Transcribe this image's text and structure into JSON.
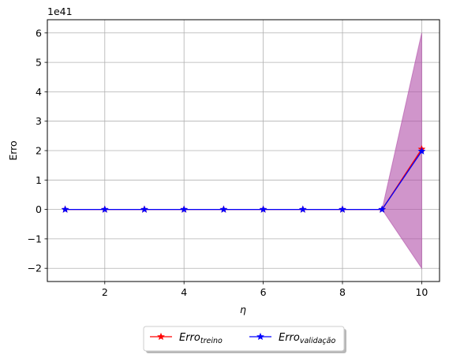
{
  "chart_data": {
    "type": "line",
    "x": [
      1,
      2,
      3,
      4,
      5,
      6,
      7,
      8,
      9,
      10
    ],
    "series": [
      {
        "name": "Erro_treino",
        "label_main": "Erro",
        "label_sub": "treino",
        "color": "#ff0000",
        "marker": "star",
        "values": [
          0,
          0,
          0,
          0,
          0,
          0,
          0,
          0,
          0,
          2.05
        ]
      },
      {
        "name": "Erro_validação",
        "label_main": "Erro",
        "label_sub": "validação",
        "color": "#0000ff",
        "marker": "star",
        "values": [
          0,
          0,
          0,
          0,
          0,
          0,
          0,
          0,
          0,
          1.98
        ]
      }
    ],
    "band": {
      "color": "#b04fa8",
      "x": [
        1,
        2,
        3,
        4,
        5,
        6,
        7,
        8,
        9,
        10
      ],
      "lower": [
        0,
        0,
        0,
        0,
        0,
        0,
        0,
        0,
        0,
        -2.0
      ],
      "upper": [
        0,
        0,
        0,
        0,
        0,
        0,
        0,
        0,
        0,
        6.0
      ]
    },
    "xlabel": "η",
    "ylabel": "Erro",
    "offset_text": "1e41",
    "xlim": [
      0.55,
      10.45
    ],
    "ylim": [
      -2.45,
      6.45
    ],
    "xticks": [
      2,
      4,
      6,
      8,
      10
    ],
    "xtick_labels": [
      "2",
      "4",
      "6",
      "8",
      "10"
    ],
    "yticks": [
      -2,
      -1,
      0,
      1,
      2,
      3,
      4,
      5,
      6
    ],
    "ytick_labels": [
      "−2",
      "−1",
      "0",
      "1",
      "2",
      "3",
      "4",
      "5",
      "6"
    ],
    "grid": true,
    "legend_position": "below"
  }
}
